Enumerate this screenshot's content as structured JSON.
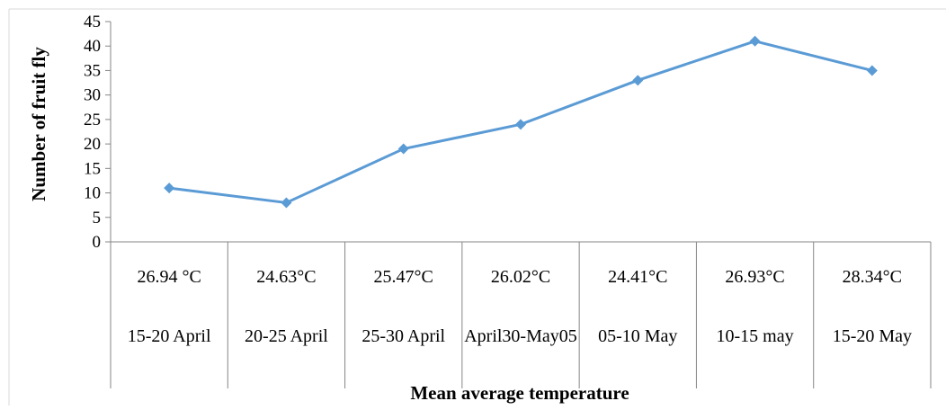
{
  "chart_data": {
    "type": "line",
    "title": "",
    "xlabel": "Mean average temperature",
    "ylabel": "Number of fruit fly",
    "ylim": [
      0,
      45
    ],
    "ytick_step": 5,
    "yticks": [
      "0",
      "5",
      "10",
      "15",
      "20",
      "25",
      "30",
      "35",
      "40",
      "45"
    ],
    "grid": false,
    "legend": "none",
    "categories": [
      {
        "temperature": "26.94 °C",
        "period": "15-20 April"
      },
      {
        "temperature": "24.63°C",
        "period": "20-25 April"
      },
      {
        "temperature": "25.47°C",
        "period": "25-30 April"
      },
      {
        "temperature": "26.02°C",
        "period": "April30-May05"
      },
      {
        "temperature": "24.41°C",
        "period": "05-10 May"
      },
      {
        "temperature": "26.93°C",
        "period": "10-15 may"
      },
      {
        "temperature": "28.34°C",
        "period": "15-20 May"
      }
    ],
    "series": [
      {
        "values": [
          11,
          8,
          19,
          24,
          33,
          41,
          35
        ],
        "color": "#5b9bd5",
        "marker": "diamond"
      }
    ],
    "colors": {
      "axis": "#868686",
      "line": "#5b9bd5",
      "text": "#000000"
    }
  }
}
